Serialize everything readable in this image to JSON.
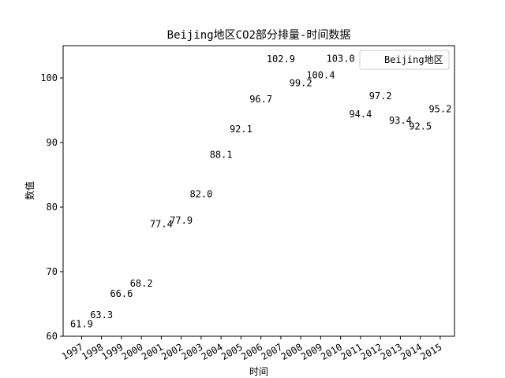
{
  "chart_data": {
    "type": "scatter",
    "title": "Beijing地区CO2部分排量-时间数据",
    "xlabel": "时间",
    "ylabel": "数值",
    "categories": [
      "1997",
      "1998",
      "1999",
      "2000",
      "2001",
      "2002",
      "2003",
      "2004",
      "2005",
      "2006",
      "2007",
      "2008",
      "2009",
      "2010",
      "2011",
      "2012",
      "2013",
      "2014",
      "2015"
    ],
    "series": [
      {
        "name": "Beijing地区",
        "values": [
          61.9,
          63.3,
          66.6,
          68.2,
          77.4,
          77.9,
          82.0,
          88.1,
          92.1,
          96.7,
          102.9,
          99.2,
          100.4,
          103.0,
          94.4,
          97.2,
          93.4,
          92.5,
          95.2
        ],
        "labels": [
          "61.9",
          "63.3",
          "66.6",
          "68.2",
          "77.4",
          "77.9",
          "82.0",
          "88.1",
          "92.1",
          "96.7",
          "102.9",
          "99.2",
          "100.4",
          "103.0",
          "94.4",
          "97.2",
          "93.4",
          "92.5",
          "95.2"
        ]
      }
    ],
    "ylim": [
      60,
      105
    ],
    "yticks": [
      60,
      70,
      80,
      90,
      100
    ],
    "ytick_labels": [
      "60",
      "70",
      "80",
      "90",
      "100"
    ],
    "grid": false,
    "legend": "top-right",
    "markers_visible": false
  }
}
